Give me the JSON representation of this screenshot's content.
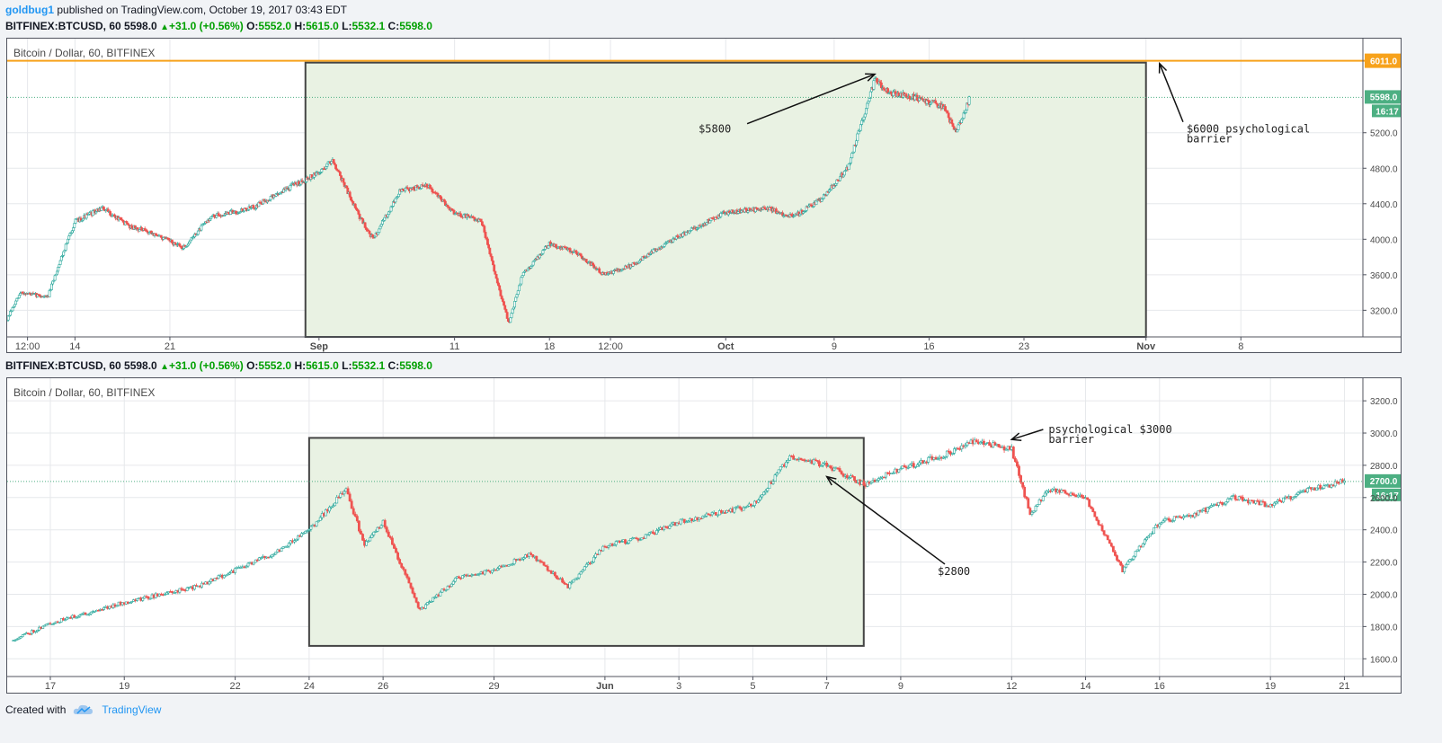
{
  "header": {
    "author": "goldbug1",
    "published": "published on TradingView.com, October 19, 2017 03:43 EDT"
  },
  "colors": {
    "up": "#26a69a",
    "down": "#ef5350",
    "highlight_fill": "#e9f2e3",
    "highlight_stroke": "#444",
    "line_orange": "#f7a21b",
    "last_price_bg": "#4caf82"
  },
  "chart_data": [
    {
      "type": "candlestick",
      "symbol_line": {
        "symbol": "BITFINEX:BTCUSD, 60",
        "last": "5598.0",
        "change": "+31.0 (+0.56%)",
        "o_label": "O:",
        "o": "5552.0",
        "h_label": "H:",
        "h": "5615.0",
        "l_label": "L:",
        "l": "5532.1",
        "c_label": "C:",
        "c": "5598.0"
      },
      "title": "Bitcoin / Dollar, 60, BITFINEX",
      "ylim": [
        2900,
        6260
      ],
      "y_ticks": [
        "3200.0",
        "3600.0",
        "4000.0",
        "4400.0",
        "4800.0",
        "5200.0"
      ],
      "x_ticks": [
        "12:00",
        "14",
        "21",
        "Sep",
        "11",
        "18",
        "12:00",
        "Oct",
        "9",
        "16",
        "23",
        "Nov",
        "8"
      ],
      "x_tick_bold": [
        "Sep",
        "Oct",
        "Nov"
      ],
      "series": [
        {
          "date": "Aug 9",
          "price": 3100
        },
        {
          "date": "Aug 10",
          "price": 3400
        },
        {
          "date": "Aug 12",
          "price": 3350
        },
        {
          "date": "Aug 13",
          "price": 3800
        },
        {
          "date": "Aug 14",
          "price": 4200
        },
        {
          "date": "Aug 16",
          "price": 4350
        },
        {
          "date": "Aug 18",
          "price": 4150
        },
        {
          "date": "Aug 20",
          "price": 4050
        },
        {
          "date": "Aug 22",
          "price": 3900
        },
        {
          "date": "Aug 24",
          "price": 4250
        },
        {
          "date": "Aug 27",
          "price": 4350
        },
        {
          "date": "Aug 30",
          "price": 4600
        },
        {
          "date": "Sep 1",
          "price": 4750
        },
        {
          "date": "Sep 2",
          "price": 4900
        },
        {
          "date": "Sep 4",
          "price": 4250
        },
        {
          "date": "Sep 5",
          "price": 4000
        },
        {
          "date": "Sep 7",
          "price": 4550
        },
        {
          "date": "Sep 9",
          "price": 4600
        },
        {
          "date": "Sep 11",
          "price": 4300
        },
        {
          "date": "Sep 13",
          "price": 4200
        },
        {
          "date": "Sep 14",
          "price": 3600
        },
        {
          "date": "Sep 15",
          "price": 3050
        },
        {
          "date": "Sep 16",
          "price": 3600
        },
        {
          "date": "Sep 18",
          "price": 3950
        },
        {
          "date": "Sep 20",
          "price": 3850
        },
        {
          "date": "Sep 22",
          "price": 3600
        },
        {
          "date": "Sep 24",
          "price": 3700
        },
        {
          "date": "Sep 26",
          "price": 3900
        },
        {
          "date": "Sep 29",
          "price": 4150
        },
        {
          "date": "Oct 1",
          "price": 4300
        },
        {
          "date": "Oct 4",
          "price": 4350
        },
        {
          "date": "Oct 6",
          "price": 4250
        },
        {
          "date": "Oct 8",
          "price": 4450
        },
        {
          "date": "Oct 10",
          "price": 4800
        },
        {
          "date": "Oct 11",
          "price": 5300
        },
        {
          "date": "Oct 12",
          "price": 5800
        },
        {
          "date": "Oct 13",
          "price": 5650
        },
        {
          "date": "Oct 15",
          "price": 5600
        },
        {
          "date": "Oct 17",
          "price": 5500
        },
        {
          "date": "Oct 18",
          "price": 5200
        },
        {
          "date": "Oct 19",
          "price": 5598
        }
      ],
      "horizontal_line": {
        "price": 6011.0,
        "label": "6011.0"
      },
      "last_price": {
        "price": 5598.0,
        "label": "5598.0",
        "timer": "16:17"
      },
      "highlight_box": {
        "x0": "Aug 31",
        "x1": "Nov 1",
        "y0": 2900,
        "y1": 5990
      },
      "annotations": [
        {
          "text": "$5800",
          "at": [
            "Sep 29",
            5200
          ],
          "arrow_to": [
            "Oct 12",
            5860
          ]
        },
        {
          "text_lines": [
            "$6000 psychological",
            "barrier"
          ],
          "at": [
            "Nov 4",
            5200
          ],
          "arrow_to": [
            "Nov 2",
            5980
          ]
        }
      ]
    },
    {
      "type": "candlestick",
      "symbol_line": {
        "symbol": "BITFINEX:BTCUSD, 60",
        "last": "5598.0",
        "change": "+31.0 (+0.56%)",
        "o_label": "O:",
        "o": "5552.0",
        "h_label": "H:",
        "h": "5615.0",
        "l_label": "L:",
        "l": "5532.1",
        "c_label": "C:",
        "c": "5598.0"
      },
      "title": "Bitcoin / Dollar, 60, BITFINEX",
      "ylim": [
        1490,
        3340
      ],
      "y_ticks": [
        "1600.0",
        "1800.0",
        "2000.0",
        "2200.0",
        "2400.0",
        "2600.0",
        "2800.0",
        "3000.0",
        "3200.0"
      ],
      "x_ticks": [
        "17",
        "19",
        "22",
        "24",
        "26",
        "29",
        "Jun",
        "3",
        "5",
        "7",
        "9",
        "12",
        "14",
        "16",
        "19",
        "21"
      ],
      "x_tick_bold": [
        "Jun"
      ],
      "series": [
        {
          "date": "May 16",
          "price": 1720
        },
        {
          "date": "May 17",
          "price": 1820
        },
        {
          "date": "May 19",
          "price": 1950
        },
        {
          "date": "May 21",
          "price": 2050
        },
        {
          "date": "May 22",
          "price": 2150
        },
        {
          "date": "May 23",
          "price": 2250
        },
        {
          "date": "May 24",
          "price": 2400
        },
        {
          "date": "May 25",
          "price": 2650
        },
        {
          "date": "May 25 12:00",
          "price": 2300
        },
        {
          "date": "May 26",
          "price": 2450
        },
        {
          "date": "May 27",
          "price": 1900
        },
        {
          "date": "May 28",
          "price": 2100
        },
        {
          "date": "May 29",
          "price": 2150
        },
        {
          "date": "May 30",
          "price": 2250
        },
        {
          "date": "May 31",
          "price": 2050
        },
        {
          "date": "Jun 1",
          "price": 2300
        },
        {
          "date": "Jun 2",
          "price": 2350
        },
        {
          "date": "Jun 3",
          "price": 2450
        },
        {
          "date": "Jun 4",
          "price": 2500
        },
        {
          "date": "Jun 5",
          "price": 2550
        },
        {
          "date": "Jun 6",
          "price": 2850
        },
        {
          "date": "Jun 7",
          "price": 2800
        },
        {
          "date": "Jun 8",
          "price": 2680
        },
        {
          "date": "Jun 9",
          "price": 2780
        },
        {
          "date": "Jun 10",
          "price": 2850
        },
        {
          "date": "Jun 11",
          "price": 2950
        },
        {
          "date": "Jun 12",
          "price": 2900
        },
        {
          "date": "Jun 12 12:00",
          "price": 2500
        },
        {
          "date": "Jun 13",
          "price": 2650
        },
        {
          "date": "Jun 14",
          "price": 2600
        },
        {
          "date": "Jun 15",
          "price": 2150
        },
        {
          "date": "Jun 16",
          "price": 2450
        },
        {
          "date": "Jun 17",
          "price": 2500
        },
        {
          "date": "Jun 18",
          "price": 2600
        },
        {
          "date": "Jun 19",
          "price": 2550
        },
        {
          "date": "Jun 20",
          "price": 2650
        },
        {
          "date": "Jun 21",
          "price": 2700
        }
      ],
      "last_price": {
        "price": 2700.0,
        "label": "2700.0",
        "timer": "16:17"
      },
      "highlight_box": {
        "x0": "May 24",
        "x1": "Jun 8",
        "y0": 1680,
        "y1": 2970
      },
      "annotations": [
        {
          "text": "$2800",
          "at": [
            "Jun 10",
            2120
          ],
          "arrow_to": [
            "Jun 7",
            2730
          ]
        },
        {
          "text_lines": [
            "psychological $3000",
            "barrier"
          ],
          "at": [
            "Jun 13",
            3000
          ],
          "arrow_to": [
            "Jun 12",
            2960
          ]
        }
      ]
    }
  ],
  "footer": {
    "created_with": "Created with",
    "brand": "TradingView"
  }
}
